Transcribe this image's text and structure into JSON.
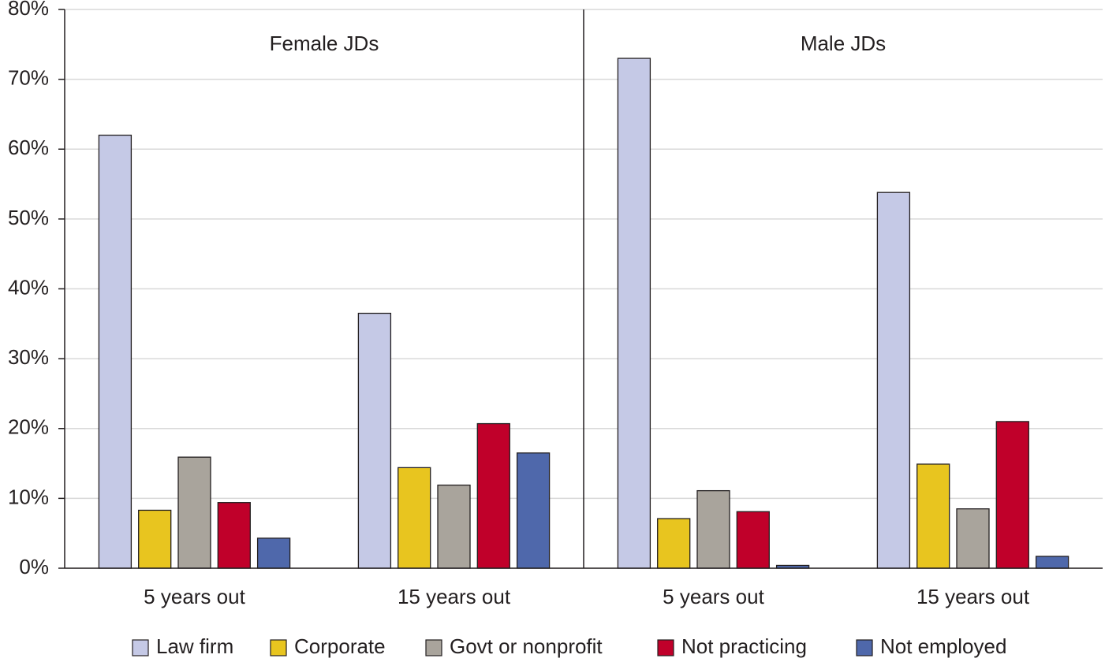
{
  "chart_data": {
    "type": "bar",
    "annotations": [
      "Female JDs",
      "Male JDs"
    ],
    "categories": [
      "5 years out",
      "15 years out",
      "5 years out",
      "15 years out"
    ],
    "series": [
      {
        "name": "Law firm",
        "color": "#c5c9e6",
        "values": [
          62,
          36.5,
          73,
          53.8
        ]
      },
      {
        "name": "Corporate",
        "color": "#e8c51f",
        "values": [
          8.3,
          14.4,
          7.1,
          14.9
        ]
      },
      {
        "name": "Govt or nonprofit",
        "color": "#a9a49c",
        "values": [
          15.9,
          11.9,
          11.1,
          8.5
        ]
      },
      {
        "name": "Not practicing",
        "color": "#c0002a",
        "values": [
          9.4,
          20.7,
          8.1,
          21
        ]
      },
      {
        "name": "Not employed",
        "color": "#4f68ab",
        "values": [
          4.3,
          16.5,
          0.4,
          1.7
        ]
      }
    ],
    "ylim": [
      0,
      80
    ],
    "yticks": [
      {
        "value": 0,
        "label": "0%"
      },
      {
        "value": 10,
        "label": "10%"
      },
      {
        "value": 20,
        "label": "20%"
      },
      {
        "value": 30,
        "label": "30%"
      },
      {
        "value": 40,
        "label": "40%"
      },
      {
        "value": 50,
        "label": "50%"
      },
      {
        "value": 60,
        "label": "60%"
      },
      {
        "value": 70,
        "label": "70%"
      },
      {
        "value": 80,
        "label": "80%"
      }
    ],
    "grid": true
  }
}
